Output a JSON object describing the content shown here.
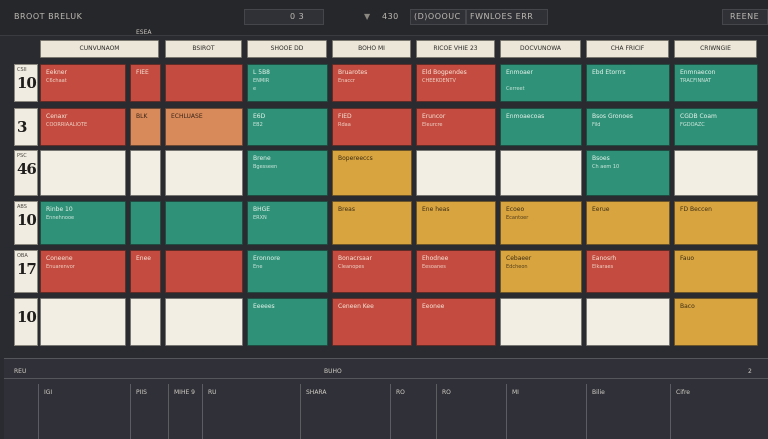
{
  "topbar": {
    "title": "BROOT BRELUK",
    "field1": "0 3",
    "field2": "430",
    "search": "(D)OOOUC",
    "filter": "FWNLOES ERR",
    "right": "REENE"
  },
  "subbar": {
    "label": "ESEA"
  },
  "columns": [
    {
      "label": "CUNVUNAOM"
    },
    {
      "label": "BSIROT"
    },
    {
      "label": "SHOOE DD"
    },
    {
      "label": "BOHO MI"
    },
    {
      "label": "RICOE VHIE 23"
    },
    {
      "label": "DOCVUNOWA"
    },
    {
      "label": "CHA FRICIF"
    },
    {
      "label": "CRIWNGIE"
    }
  ],
  "rows": [
    {
      "small": "CSII",
      "num": "10"
    },
    {
      "small": "",
      "num": "3"
    },
    {
      "small": "PSC",
      "num": "46"
    },
    {
      "small": "ABS",
      "num": "10"
    },
    {
      "small": "OBA",
      "num": "17"
    },
    {
      "small": "",
      "num": "10"
    }
  ],
  "cells": [
    {
      "row": 0,
      "col": 0,
      "color": "red",
      "l1": "Eekner",
      "l2": "C6chaat",
      "l3": ""
    },
    {
      "row": 0,
      "col": 1,
      "color": "red",
      "l1": "FIEE",
      "l2": "",
      "l3": ""
    },
    {
      "row": 0,
      "col": 2,
      "color": "red",
      "l1": "",
      "l2": "",
      "l3": ""
    },
    {
      "row": 0,
      "col": 3,
      "color": "teal",
      "l1": "L 5B8",
      "l2": "ENMIR",
      "l3": "e"
    },
    {
      "row": 0,
      "col": 4,
      "color": "red",
      "l1": "Bruarotes",
      "l2": "Enaccr",
      "l3": ""
    },
    {
      "row": 0,
      "col": 5,
      "color": "red",
      "l1": "Eld Bogpendes",
      "l2": "CHEEKOENTV",
      "l3": ""
    },
    {
      "row": 0,
      "col": 6,
      "color": "teal",
      "l1": "Enmoaer",
      "l2": "",
      "l3": "Cerreet"
    },
    {
      "row": 0,
      "col": 7,
      "color": "teal",
      "l1": "Ebd Etorrrs",
      "l2": "",
      "l3": ""
    },
    {
      "row": 0,
      "col": 8,
      "color": "teal",
      "l1": "Enmnaecon",
      "l2": "TRACFINNAT",
      "l3": ""
    },
    {
      "row": 1,
      "col": 0,
      "color": "red",
      "l1": "Cenaxr",
      "l2": "COORRIAALIOTE",
      "l3": ""
    },
    {
      "row": 1,
      "col": 1,
      "color": "tan",
      "l1": "BLK",
      "l2": "",
      "l3": ""
    },
    {
      "row": 1,
      "col": 2,
      "color": "tan",
      "l1": "ECHLUASE",
      "l2": "",
      "l3": ""
    },
    {
      "row": 1,
      "col": 3,
      "color": "teal",
      "l1": "E6D",
      "l2": "EB2",
      "l3": ""
    },
    {
      "row": 1,
      "col": 4,
      "color": "red",
      "l1": "FIED",
      "l2": "Rdaa",
      "l3": ""
    },
    {
      "row": 1,
      "col": 5,
      "color": "red",
      "l1": "Eruncor",
      "l2": "Eleurcre",
      "l3": ""
    },
    {
      "row": 1,
      "col": 6,
      "color": "teal",
      "l1": "Enmoaecoas",
      "l2": "",
      "l3": ""
    },
    {
      "row": 1,
      "col": 7,
      "color": "teal",
      "l1": "Bsos Gronoes",
      "l2": "Fild",
      "l3": ""
    },
    {
      "row": 1,
      "col": 8,
      "color": "teal",
      "l1": "CGDB Coam",
      "l2": "FGDOAZC",
      "l3": ""
    },
    {
      "row": 2,
      "col": 0,
      "color": "cream",
      "l1": "",
      "l2": "",
      "l3": ""
    },
    {
      "row": 2,
      "col": 1,
      "color": "cream",
      "l1": "",
      "l2": "",
      "l3": ""
    },
    {
      "row": 2,
      "col": 2,
      "color": "cream",
      "l1": "",
      "l2": "",
      "l3": ""
    },
    {
      "row": 2,
      "col": 3,
      "color": "teal",
      "l1": "Brene",
      "l2": "Bgesseen",
      "l3": ""
    },
    {
      "row": 2,
      "col": 4,
      "color": "gold",
      "l1": "Bopereeccs",
      "l2": "",
      "l3": ""
    },
    {
      "row": 2,
      "col": 5,
      "color": "cream",
      "l1": "",
      "l2": "",
      "l3": ""
    },
    {
      "row": 2,
      "col": 6,
      "color": "cream",
      "l1": "",
      "l2": "",
      "l3": ""
    },
    {
      "row": 2,
      "col": 7,
      "color": "teal",
      "l1": "Bsoes",
      "l2": "Ch aem 10",
      "l3": ""
    },
    {
      "row": 2,
      "col": 8,
      "color": "cream",
      "l1": "",
      "l2": "",
      "l3": ""
    },
    {
      "row": 3,
      "col": 0,
      "color": "teal",
      "l1": "Rinbe 10",
      "l2": "Ennehnooe",
      "l3": ""
    },
    {
      "row": 3,
      "col": 1,
      "color": "teal",
      "l1": "",
      "l2": "",
      "l3": ""
    },
    {
      "row": 3,
      "col": 2,
      "color": "teal",
      "l1": "",
      "l2": "",
      "l3": ""
    },
    {
      "row": 3,
      "col": 3,
      "color": "teal",
      "l1": "BHGE",
      "l2": "ERXN",
      "l3": ""
    },
    {
      "row": 3,
      "col": 4,
      "color": "gold",
      "l1": "Breas",
      "l2": "",
      "l3": ""
    },
    {
      "row": 3,
      "col": 5,
      "color": "gold",
      "l1": "Ene heas",
      "l2": "",
      "l3": ""
    },
    {
      "row": 3,
      "col": 6,
      "color": "gold",
      "l1": "Ecoeo",
      "l2": "Ecantoer",
      "l3": ""
    },
    {
      "row": 3,
      "col": 7,
      "color": "gold",
      "l1": "Eerue",
      "l2": "",
      "l3": ""
    },
    {
      "row": 3,
      "col": 8,
      "color": "gold",
      "l1": "FD Beccen",
      "l2": "",
      "l3": ""
    },
    {
      "row": 4,
      "col": 0,
      "color": "red",
      "l1": "Coneene",
      "l2": "Enuarenvor",
      "l3": ""
    },
    {
      "row": 4,
      "col": 1,
      "color": "red",
      "l1": "Enee",
      "l2": "",
      "l3": ""
    },
    {
      "row": 4,
      "col": 2,
      "color": "red",
      "l1": "",
      "l2": "",
      "l3": ""
    },
    {
      "row": 4,
      "col": 3,
      "color": "teal",
      "l1": "Eronnore",
      "l2": "Ene",
      "l3": ""
    },
    {
      "row": 4,
      "col": 4,
      "color": "red",
      "l1": "Bonacrsaar",
      "l2": "Cleanopes",
      "l3": ""
    },
    {
      "row": 4,
      "col": 5,
      "color": "red",
      "l1": "Ehodnee",
      "l2": "Eesoanes",
      "l3": ""
    },
    {
      "row": 4,
      "col": 6,
      "color": "gold",
      "l1": "Cebaeer",
      "l2": "Edcheon",
      "l3": ""
    },
    {
      "row": 4,
      "col": 7,
      "color": "red",
      "l1": "Eanosrh",
      "l2": "Elkaraes",
      "l3": ""
    },
    {
      "row": 4,
      "col": 8,
      "color": "gold",
      "l1": "Fauo",
      "l2": "",
      "l3": ""
    },
    {
      "row": 5,
      "col": 0,
      "color": "cream",
      "l1": "",
      "l2": "",
      "l3": ""
    },
    {
      "row": 5,
      "col": 1,
      "color": "cream",
      "l1": "",
      "l2": "",
      "l3": ""
    },
    {
      "row": 5,
      "col": 2,
      "color": "cream",
      "l1": "",
      "l2": "",
      "l3": ""
    },
    {
      "row": 5,
      "col": 3,
      "color": "teal",
      "l1": "Eeeees",
      "l2": "",
      "l3": ""
    },
    {
      "row": 5,
      "col": 4,
      "color": "red",
      "l1": "Ceneen Kee",
      "l2": "",
      "l3": ""
    },
    {
      "row": 5,
      "col": 5,
      "color": "red",
      "l1": "Eeonee",
      "l2": "",
      "l3": ""
    },
    {
      "row": 5,
      "col": 6,
      "color": "cream",
      "l1": "",
      "l2": "",
      "l3": ""
    },
    {
      "row": 5,
      "col": 7,
      "color": "cream",
      "l1": "",
      "l2": "",
      "l3": ""
    },
    {
      "row": 5,
      "col": 8,
      "color": "gold",
      "l1": "Baco",
      "l2": "",
      "l3": ""
    }
  ],
  "bottom": {
    "left_label": "REU",
    "center_label": "BUHO",
    "right_num": "2",
    "ticks": [
      "IGI",
      "PIIS",
      "MIHE 9",
      "RU",
      "SHARA",
      "RO",
      "RO",
      "MI",
      "Bilie",
      "Cifre"
    ]
  }
}
